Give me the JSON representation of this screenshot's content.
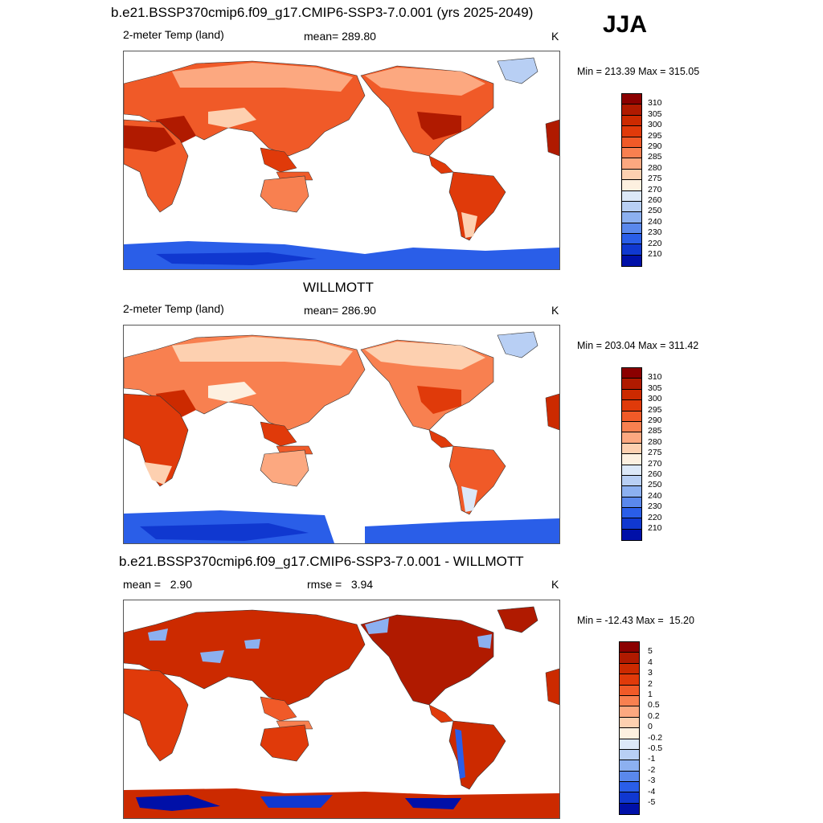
{
  "season": "JJA",
  "panels": [
    {
      "title": "b.e21.BSSP370cmip6.f09_g17.CMIP6-SSP3-7.0.001 (yrs 2025-2049)",
      "left": "2-meter Temp (land)",
      "center": "mean= 289.80",
      "units": "K",
      "minmax": "Min = 213.39 Max = 315.05",
      "colorbar": {
        "labels": [
          "310",
          "305",
          "300",
          "295",
          "290",
          "285",
          "280",
          "275",
          "270",
          "260",
          "250",
          "240",
          "230",
          "220",
          "210"
        ],
        "colors": [
          "#8b0000",
          "#b01a00",
          "#cc2a00",
          "#e03a0a",
          "#f05a28",
          "#f88050",
          "#fca880",
          "#fdd0b0",
          "#fdf0e0",
          "#dce8f8",
          "#b8cff4",
          "#8cb0f0",
          "#5a88ec",
          "#2a5ee8",
          "#1038d0",
          "#0010a8"
        ]
      }
    },
    {
      "title": "WILLMOTT",
      "left": "2-meter Temp (land)",
      "center": "mean= 286.90",
      "units": "K",
      "minmax": "Min = 203.04 Max = 311.42",
      "colorbar": {
        "labels": [
          "310",
          "305",
          "300",
          "295",
          "290",
          "285",
          "280",
          "275",
          "270",
          "260",
          "250",
          "240",
          "230",
          "220",
          "210"
        ],
        "colors": [
          "#8b0000",
          "#b01a00",
          "#cc2a00",
          "#e03a0a",
          "#f05a28",
          "#f88050",
          "#fca880",
          "#fdd0b0",
          "#fdf0e0",
          "#dce8f8",
          "#b8cff4",
          "#8cb0f0",
          "#5a88ec",
          "#2a5ee8",
          "#1038d0",
          "#0010a8"
        ]
      }
    },
    {
      "title": "b.e21.BSSP370cmip6.f09_g17.CMIP6-SSP3-7.0.001 - WILLMOTT",
      "left": "mean =   2.90",
      "center": "rmse =   3.94",
      "units": "K",
      "minmax": "Min = -12.43 Max =  15.20",
      "colorbar": {
        "labels": [
          "5",
          "4",
          "3",
          "2",
          "1",
          "0.5",
          "0.2",
          "0",
          "-0.2",
          "-0.5",
          "-1",
          "-2",
          "-3",
          "-4",
          "-5"
        ],
        "colors": [
          "#8b0000",
          "#b01a00",
          "#cc2a00",
          "#e03a0a",
          "#f05a28",
          "#f88050",
          "#fca880",
          "#fdd0b0",
          "#fdf0e0",
          "#dce8f8",
          "#b8cff4",
          "#8cb0f0",
          "#5a88ec",
          "#2a5ee8",
          "#1038d0",
          "#0010a8"
        ]
      }
    }
  ]
}
